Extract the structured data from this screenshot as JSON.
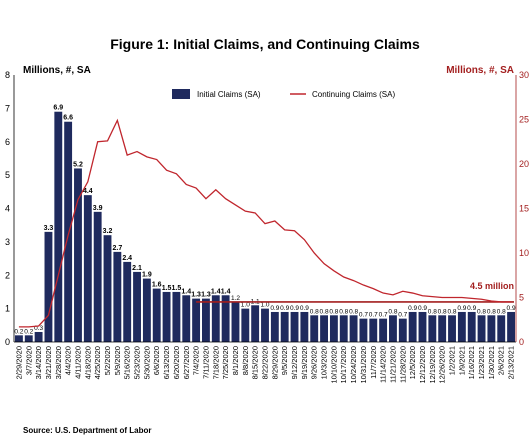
{
  "chart_data": {
    "type": "bar",
    "title": "Figure 1: Initial Claims, and Continuing Claims",
    "left_axis_label": "Millions, #, SA",
    "right_axis_label": "Millions, #, SA",
    "ylim": [
      0,
      8
    ],
    "y2lim": [
      0,
      30
    ],
    "yticks": [
      "0",
      "1",
      "2",
      "3",
      "4",
      "5",
      "6",
      "7",
      "8"
    ],
    "y2ticks": [
      "0",
      "5",
      "10",
      "15",
      "20",
      "25",
      "30"
    ],
    "legend_placement": "top-center",
    "source": "Source: U.S. Department of Labor",
    "annotation": "4.5 million",
    "categories": [
      "2/29/2020",
      "3/7/2020",
      "3/14/2020",
      "3/21/2020",
      "3/28/2020",
      "4/4/2020",
      "4/11/2020",
      "4/18/2020",
      "4/25/2020",
      "5/2/2020",
      "5/9/2020",
      "5/16/2020",
      "5/23/2020",
      "5/30/2020",
      "6/6/2020",
      "6/13/2020",
      "6/20/2020",
      "6/27/2020",
      "7/4/2020",
      "7/11/2020",
      "7/18/2020",
      "7/25/2020",
      "8/1/2020",
      "8/8/2020",
      "8/15/2020",
      "8/22/2020",
      "8/29/2020",
      "9/5/2020",
      "9/12/2020",
      "9/19/2020",
      "9/26/2020",
      "10/3/2020",
      "10/10/2020",
      "10/17/2020",
      "10/24/2020",
      "10/31/2020",
      "11/7/2020",
      "11/14/2020",
      "11/21/2020",
      "11/28/2020",
      "12/5/2020",
      "12/12/2020",
      "12/19/2020",
      "12/26/2020",
      "1/2/2021",
      "1/9/2021",
      "1/16/2021",
      "1/23/2021",
      "1/30/2021",
      "2/6/2021",
      "2/13/2021"
    ],
    "series": [
      {
        "name": "Initial Claims (SA)",
        "color": "#1f2a5e",
        "values": [
          0.2,
          0.2,
          0.3,
          3.3,
          6.9,
          6.6,
          5.2,
          4.4,
          3.9,
          3.2,
          2.7,
          2.4,
          2.1,
          1.9,
          1.6,
          1.5,
          1.5,
          1.4,
          1.3,
          1.3,
          1.4,
          1.4,
          1.2,
          1.0,
          1.1,
          1.0,
          0.9,
          0.9,
          0.9,
          0.9,
          0.8,
          0.8,
          0.8,
          0.8,
          0.8,
          0.7,
          0.7,
          0.7,
          0.8,
          0.7,
          0.9,
          0.9,
          0.8,
          0.8,
          0.8,
          0.9,
          0.9,
          0.8,
          0.8,
          0.8,
          0.9
        ],
        "labels": [
          "0.2",
          "0.2",
          "0.3",
          "3.3",
          "6.9",
          "6.6",
          "5.2",
          "4.4",
          "3.9",
          "3.2",
          "2.7",
          "2.4",
          "2.1",
          "1.9",
          "1.6",
          "1.5",
          "1.5",
          "1.4",
          "1.3",
          "1.3",
          "1.4",
          "1.4",
          "1.2",
          "1.0",
          "1.1",
          "1.0",
          "0.9",
          "0.9",
          "0.9",
          "0.9",
          "0.8",
          "0.8",
          "0.8",
          "0.8",
          "0.8",
          "0.7",
          "0.7",
          "0.7",
          "0.8",
          "0.7",
          "0.9",
          "0.9",
          "0.8",
          "0.8",
          "0.8",
          "0.9",
          "0.9",
          "0.8",
          "0.8",
          "0.8",
          "0.9"
        ]
      },
      {
        "name": "Continuing Claims (SA)",
        "color": "#a31f1f",
        "axis": "right",
        "values": [
          1.7,
          1.7,
          1.8,
          3.0,
          7.5,
          12.0,
          16.0,
          18.0,
          22.5,
          22.6,
          24.9,
          21.0,
          21.4,
          20.8,
          20.5,
          19.3,
          18.9,
          17.7,
          17.3,
          16.1,
          17.1,
          16.1,
          15.4,
          14.7,
          14.5,
          13.3,
          13.6,
          12.6,
          12.5,
          11.5,
          10.0,
          8.8,
          8.0,
          7.3,
          6.9,
          6.4,
          6.0,
          5.5,
          5.3,
          5.7,
          5.5,
          5.2,
          5.1,
          5.0,
          5.0,
          5.0,
          4.9,
          4.8,
          4.6,
          4.5,
          4.5
        ]
      },
      {
        "name": "4.5 million reference",
        "color": "#a31f1f",
        "axis": "right",
        "constant": 4.5,
        "from_category": "7/4/2020"
      }
    ]
  }
}
